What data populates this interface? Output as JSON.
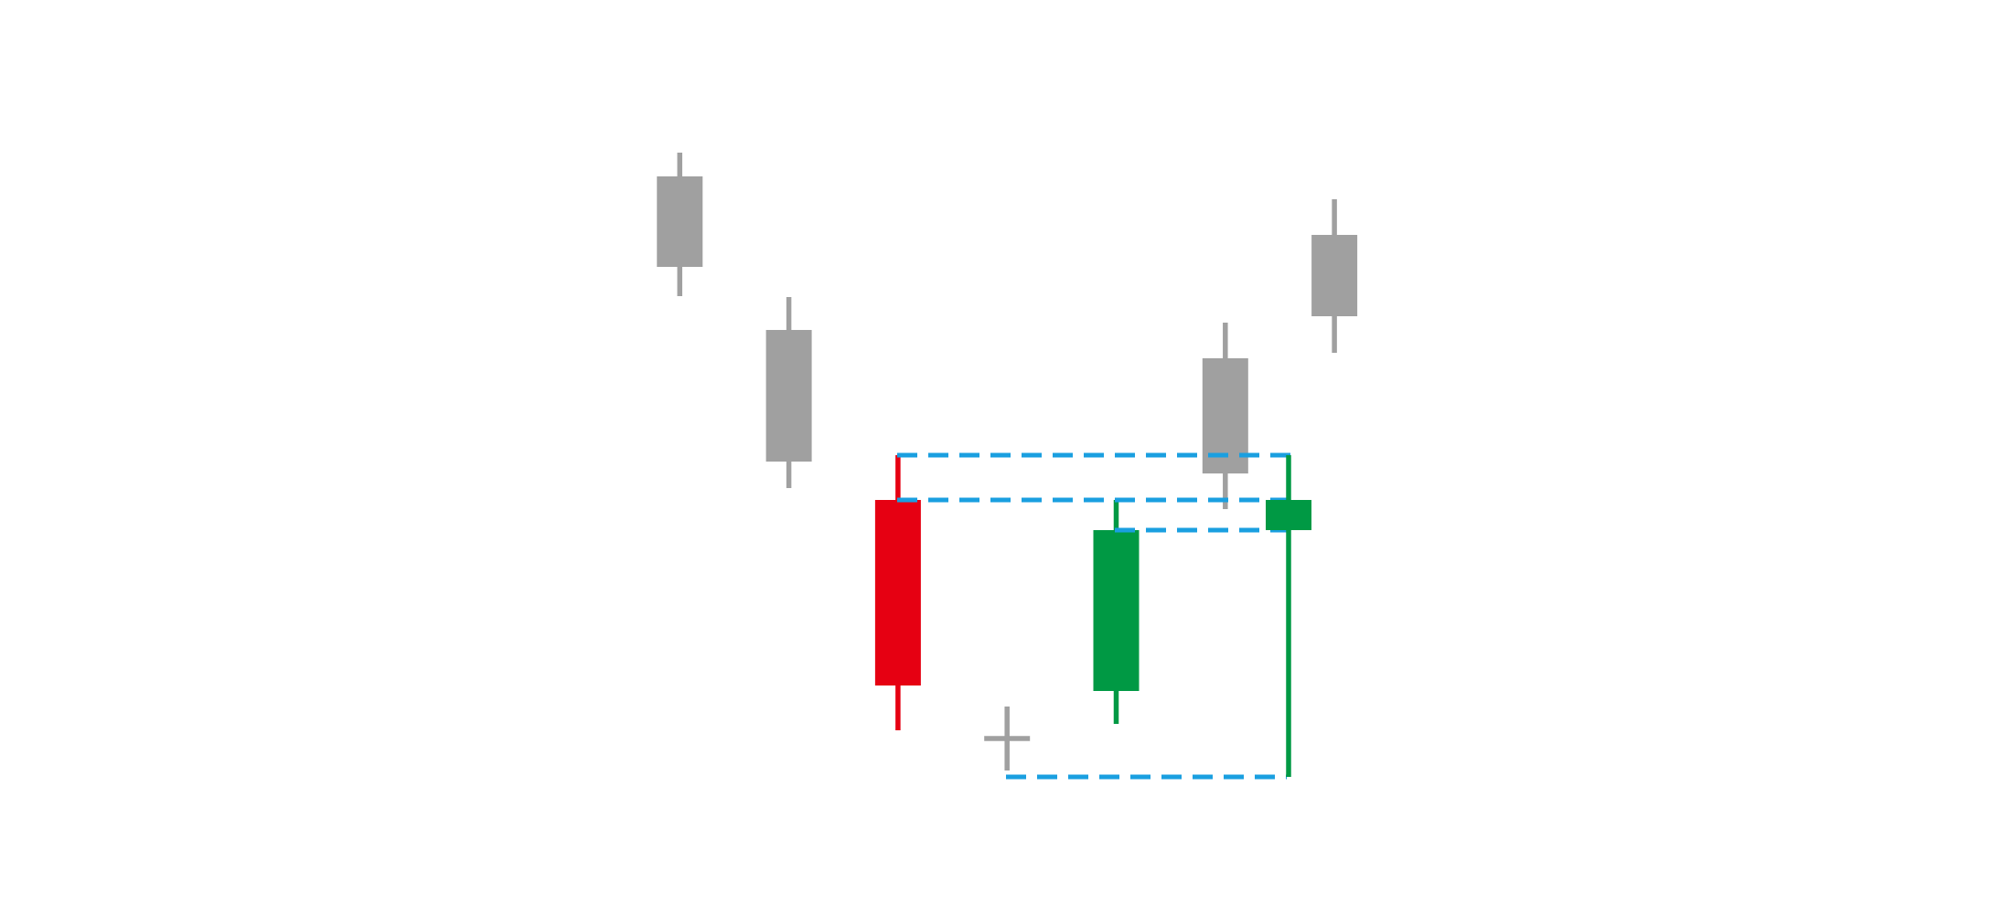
{
  "chart_data": {
    "type": "candlestick",
    "x": [
      0,
      1,
      2,
      3,
      4,
      5,
      5.58,
      6
    ],
    "open": [
      80.7,
      63.9,
      45.3,
      19.2,
      24.4,
      48.2,
      42.0,
      65.4
    ],
    "high": [
      83.3,
      67.5,
      50.2,
      22.7,
      45.3,
      64.7,
      50.2,
      78.2
    ],
    "low": [
      67.6,
      46.6,
      20.1,
      15.7,
      20.8,
      44.3,
      15.0,
      61.4
    ],
    "close": [
      70.8,
      49.5,
      25.0,
      19.2,
      42.0,
      60.8,
      45.3,
      74.3
    ],
    "colors": [
      "#a0a0a0",
      "#a0a0a0",
      "#e60012",
      "#a0a0a0",
      "#009944",
      "#a0a0a0",
      "#009944",
      "#a0a0a0"
    ],
    "xlim": [
      -6.23,
      12.21
    ],
    "ylim": [
      0,
      100
    ]
  }
}
